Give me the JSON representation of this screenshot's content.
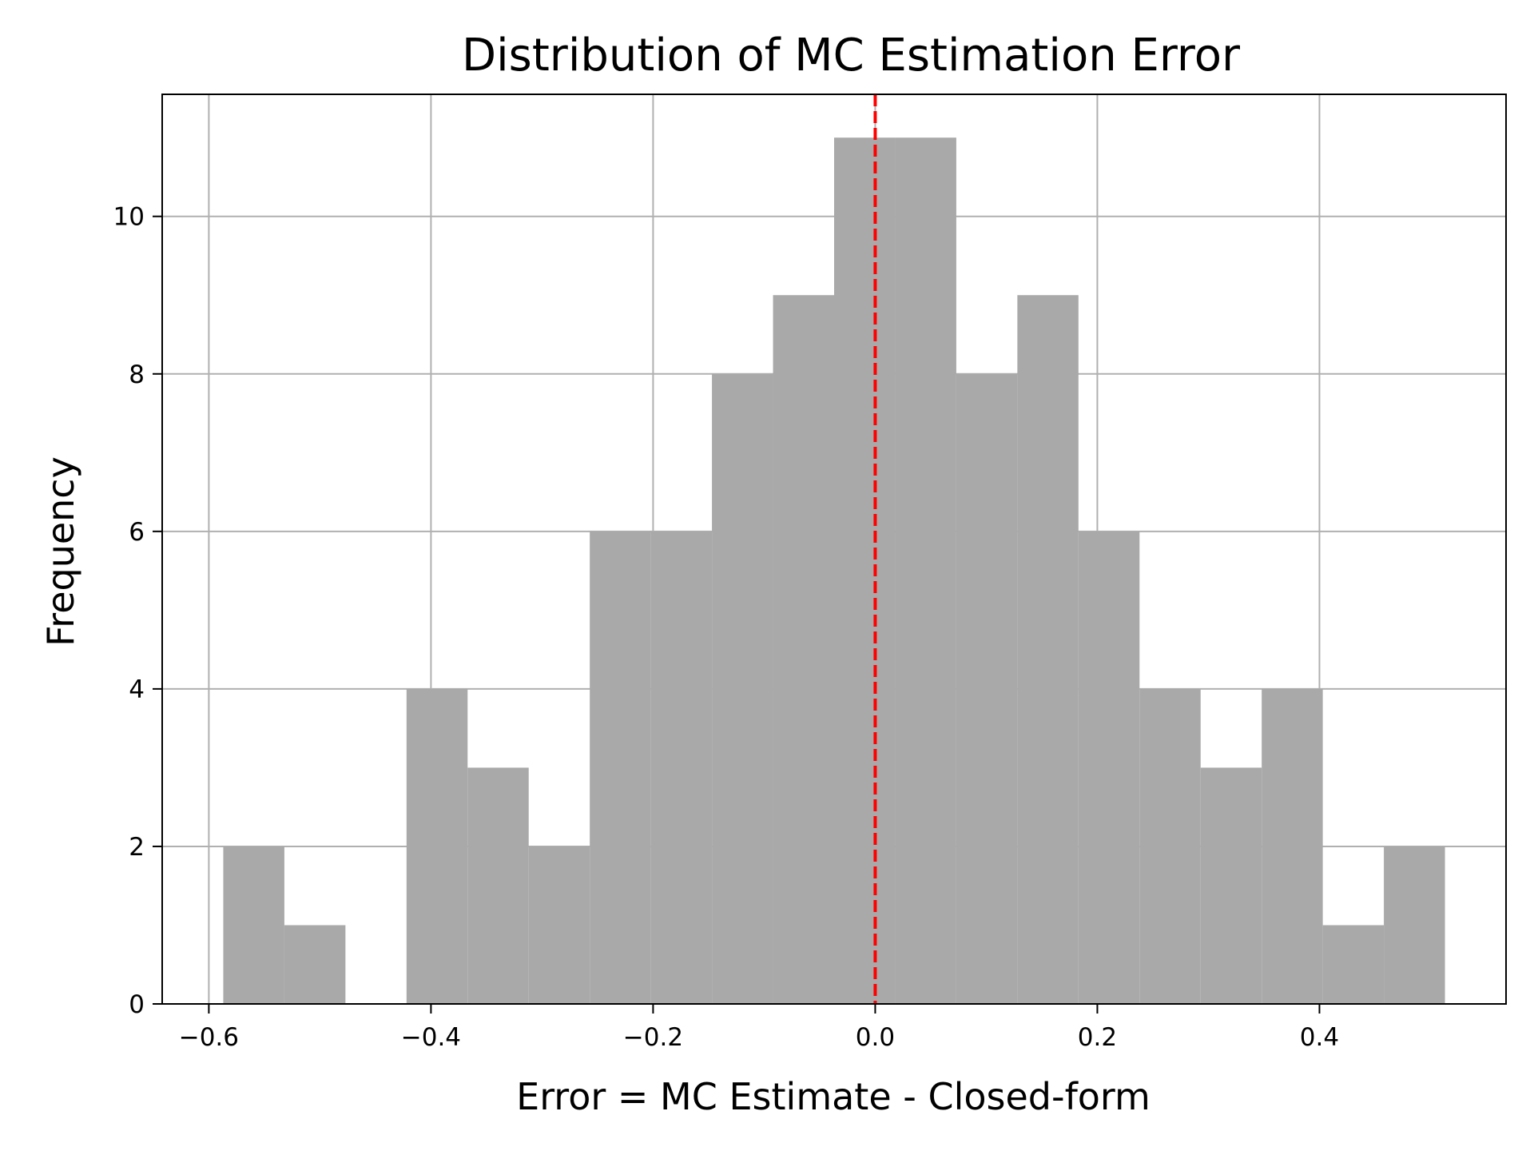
{
  "chart_data": {
    "type": "bar",
    "title": "Distribution of MC Estimation Error",
    "xlabel": "Error = MC Estimate - Closed-form",
    "ylabel": "Frequency",
    "bin_edges": [
      -0.587,
      -0.532,
      -0.477,
      -0.422,
      -0.367,
      -0.312,
      -0.257,
      -0.202,
      -0.147,
      -0.092,
      -0.037,
      0.018,
      0.073,
      0.128,
      0.183,
      0.238,
      0.293,
      0.348,
      0.403,
      0.458,
      0.513
    ],
    "counts": [
      2,
      1,
      0,
      4,
      3,
      2,
      6,
      6,
      8,
      9,
      11,
      11,
      8,
      9,
      6,
      4,
      3,
      4,
      1,
      2
    ],
    "xlim": [
      -0.642,
      0.568
    ],
    "ylim": [
      0,
      11.55
    ],
    "xticks": [
      -0.6,
      -0.4,
      -0.2,
      0.0,
      0.2,
      0.4
    ],
    "xtick_labels": [
      "−0.6",
      "−0.4",
      "−0.2",
      "0.0",
      "0.2",
      "0.4"
    ],
    "yticks": [
      0,
      2,
      4,
      6,
      8,
      10
    ],
    "ytick_labels": [
      "0",
      "2",
      "4",
      "6",
      "8",
      "10"
    ],
    "grid": true,
    "bar_color": "#a9a9a9",
    "reference_line": {
      "x": 0.0,
      "color": "#ff0000",
      "style": "dashed"
    }
  }
}
